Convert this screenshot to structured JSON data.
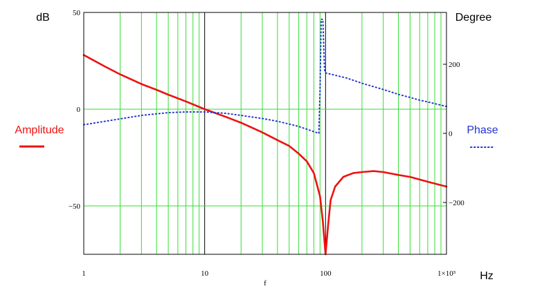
{
  "chart_data": {
    "type": "line",
    "xscale": "log",
    "xlim": [
      1,
      1000
    ],
    "ylim_left": [
      -75,
      50
    ],
    "ylim_right": [
      -350,
      350
    ],
    "grid": true,
    "colors": {
      "grid": "#33dd33",
      "major_grid": "#000000",
      "amplitude": "#ee1111",
      "phase": "#2233cc"
    },
    "x_ticks": [
      {
        "value": 1,
        "label": "1"
      },
      {
        "value": 10,
        "label": "10"
      },
      {
        "value": 100,
        "label": "100"
      },
      {
        "value": 1000,
        "label": "1×10³"
      }
    ],
    "y_left_ticks": [
      {
        "value": 50,
        "label": "50"
      },
      {
        "value": 0,
        "label": "0"
      },
      {
        "value": -50,
        "label": "−50"
      }
    ],
    "y_right_ticks": [
      {
        "value": 200,
        "label": "200"
      },
      {
        "value": 0,
        "label": "0"
      },
      {
        "value": -200,
        "label": "−200"
      }
    ],
    "ylabel_left": "dB",
    "ylabel_right": "Degree",
    "xlabel": "Hz",
    "xvar": "f",
    "series": [
      {
        "name": "Amplitude",
        "axis": "left",
        "style": "solid",
        "points": [
          [
            1,
            28
          ],
          [
            1.5,
            22
          ],
          [
            2,
            18
          ],
          [
            3,
            13
          ],
          [
            4,
            10
          ],
          [
            5,
            7.5
          ],
          [
            7,
            4
          ],
          [
            10,
            0
          ],
          [
            15,
            -4
          ],
          [
            20,
            -7
          ],
          [
            30,
            -12
          ],
          [
            40,
            -16
          ],
          [
            50,
            -19
          ],
          [
            60,
            -23
          ],
          [
            70,
            -27
          ],
          [
            80,
            -33
          ],
          [
            90,
            -45
          ],
          [
            95,
            -58
          ],
          [
            100,
            -75
          ],
          [
            105,
            -60
          ],
          [
            110,
            -47
          ],
          [
            120,
            -40
          ],
          [
            140,
            -35
          ],
          [
            170,
            -33
          ],
          [
            200,
            -32.5
          ],
          [
            250,
            -32
          ],
          [
            300,
            -32.5
          ],
          [
            400,
            -34
          ],
          [
            500,
            -35
          ],
          [
            700,
            -37.5
          ],
          [
            1000,
            -40
          ]
        ]
      },
      {
        "name": "Phase",
        "axis": "right",
        "style": "dotted",
        "points": [
          [
            1,
            25
          ],
          [
            2,
            42
          ],
          [
            3,
            52
          ],
          [
            5,
            60
          ],
          [
            7,
            62
          ],
          [
            10,
            62
          ],
          [
            15,
            58
          ],
          [
            20,
            52
          ],
          [
            30,
            43
          ],
          [
            40,
            35
          ],
          [
            50,
            27
          ],
          [
            60,
            20
          ],
          [
            70,
            12
          ],
          [
            80,
            5
          ],
          [
            88,
            0
          ],
          [
            90,
            120
          ],
          [
            92,
            330
          ],
          [
            95,
            330
          ],
          [
            98,
            185
          ],
          [
            100,
            175
          ],
          [
            150,
            160
          ],
          [
            200,
            145
          ],
          [
            300,
            127
          ],
          [
            400,
            113
          ],
          [
            500,
            104
          ],
          [
            600,
            96
          ],
          [
            700,
            91
          ],
          [
            800,
            86
          ],
          [
            1000,
            78
          ]
        ]
      }
    ]
  }
}
